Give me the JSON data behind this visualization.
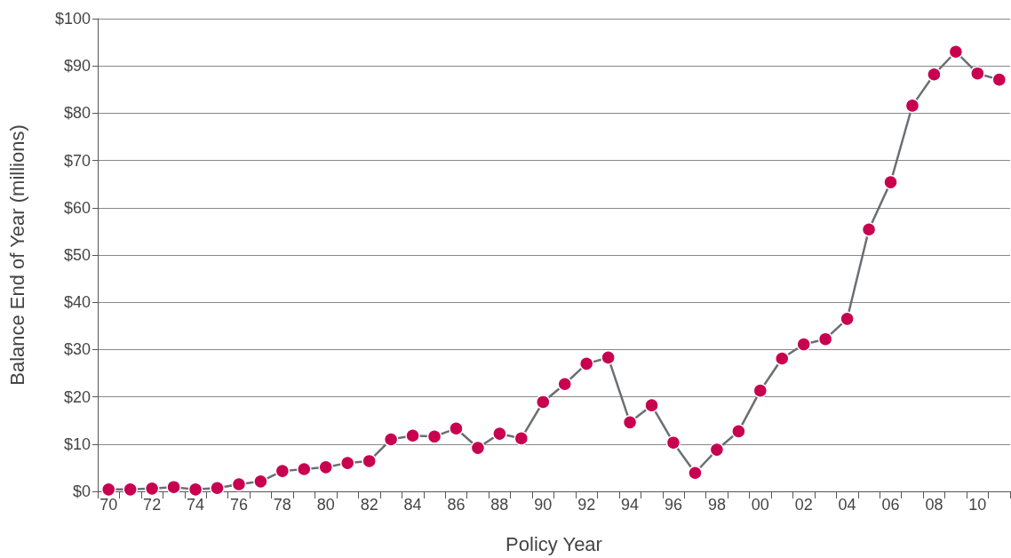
{
  "chart_data": {
    "type": "line",
    "xlabel": "Policy Year",
    "ylabel": "Balance End of Year (millions)",
    "categories": [
      "70",
      null,
      "72",
      null,
      "74",
      null,
      "76",
      null,
      "78",
      null,
      "80",
      null,
      "82",
      null,
      "84",
      null,
      "86",
      null,
      "88",
      null,
      "90",
      null,
      "92",
      null,
      "94",
      null,
      "96",
      null,
      "98",
      null,
      "00",
      null,
      "02",
      null,
      "04",
      null,
      "06",
      null,
      "08",
      null,
      "10",
      null
    ],
    "series": [
      {
        "color": "#c8004f",
        "values": [
          0.4,
          0.4,
          0.6,
          0.9,
          0.4,
          0.7,
          1.5,
          2.1,
          4.3,
          4.7,
          5.1,
          6.0,
          6.4,
          11.0,
          11.8,
          11.6,
          13.3,
          9.2,
          12.2,
          11.2,
          18.9,
          22.7,
          27.0,
          28.3,
          14.6,
          18.2,
          10.3,
          3.9,
          8.8,
          12.7,
          21.3,
          28.1,
          31.1,
          32.2,
          36.5,
          55.4,
          65.4,
          81.6,
          88.2,
          93.0,
          88.4,
          87.1
        ]
      }
    ],
    "ylim": [
      0,
      100
    ],
    "yticks": [
      {
        "value": 0,
        "label": "$0"
      },
      {
        "value": 10,
        "label": "$10"
      },
      {
        "value": 20,
        "label": "$20"
      },
      {
        "value": 30,
        "label": "$30"
      },
      {
        "value": 40,
        "label": "$40"
      },
      {
        "value": 50,
        "label": "$50"
      },
      {
        "value": 60,
        "label": "$60"
      },
      {
        "value": 70,
        "label": "$70"
      },
      {
        "value": 80,
        "label": "$80"
      },
      {
        "value": 90,
        "label": "$90"
      },
      {
        "value": 100,
        "label": "$100"
      }
    ],
    "grid": "y",
    "marker": "circle",
    "line_style": "solid"
  }
}
